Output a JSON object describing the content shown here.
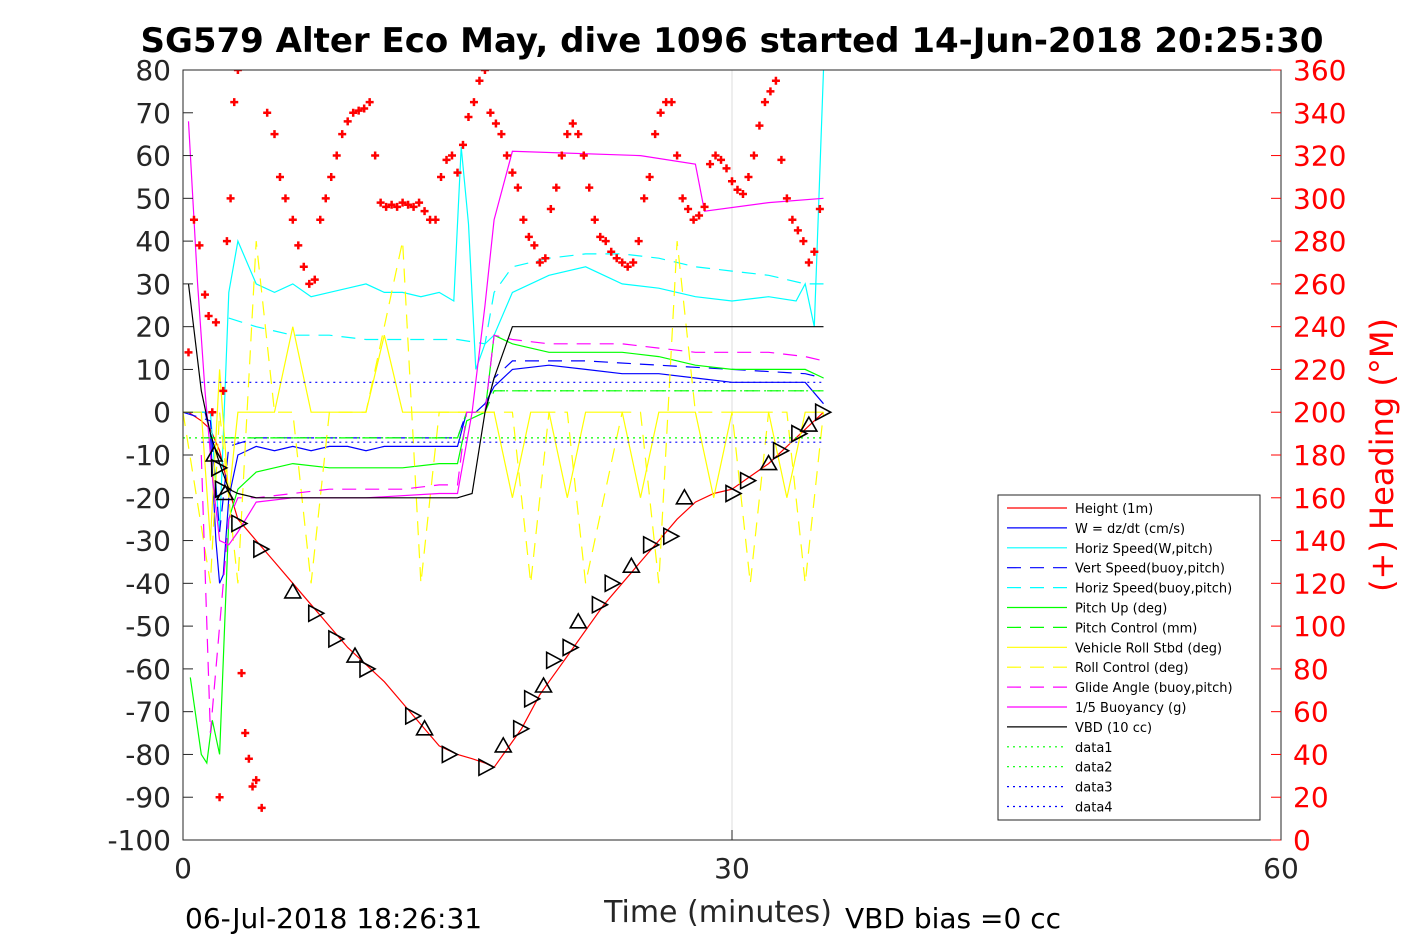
{
  "title": "SG579 Alter Eco May, dive 1096 started 14-Jun-2018 20:25:30",
  "footer": {
    "date": "06-Jul-2018 18:26:31",
    "vbd_bias": "VBD bias =0 cc"
  },
  "chart_data": {
    "type": "line",
    "title": "SG579 Alter Eco May, dive 1096 started 14-Jun-2018 20:25:30",
    "xlabel": "Time (minutes)",
    "ylabel": "",
    "y2label": "(+) Heading (°M)",
    "xlim": [
      0,
      60
    ],
    "ylim": [
      -100,
      80
    ],
    "y2lim": [
      0,
      360
    ],
    "xticks": [
      0,
      30,
      60
    ],
    "yticks": [
      -100,
      -90,
      -80,
      -70,
      -60,
      -50,
      -40,
      -30,
      -20,
      -10,
      0,
      10,
      20,
      30,
      40,
      50,
      60,
      70,
      80
    ],
    "y2ticks": [
      0,
      20,
      40,
      60,
      80,
      100,
      120,
      140,
      160,
      180,
      200,
      220,
      240,
      260,
      280,
      300,
      320,
      340,
      360
    ],
    "grid": "x-only",
    "legend_position": "lower-right",
    "legend": [
      {
        "label": "Height (1m)",
        "color": "#ff0000",
        "style": "solid"
      },
      {
        "label": "W = dz/dt (cm/s)",
        "color": "#0000ff",
        "style": "solid"
      },
      {
        "label": "Horiz Speed(W,pitch)",
        "color": "#00ffff",
        "style": "solid"
      },
      {
        "label": "Vert Speed(buoy,pitch)",
        "color": "#0000ff",
        "style": "dashed"
      },
      {
        "label": "Horiz Speed(buoy,pitch)",
        "color": "#00ffff",
        "style": "dashed"
      },
      {
        "label": "Pitch Up (deg)",
        "color": "#00ff00",
        "style": "solid"
      },
      {
        "label": "Pitch Control (mm)",
        "color": "#00ff00",
        "style": "dashed"
      },
      {
        "label": "Vehicle Roll Stbd (deg)",
        "color": "#ffff00",
        "style": "solid"
      },
      {
        "label": "Roll Control (deg)",
        "color": "#ffff00",
        "style": "dashed"
      },
      {
        "label": "Glide Angle (buoy,pitch)",
        "color": "#ff00ff",
        "style": "dashed"
      },
      {
        "label": "1/5 Buoyancy (g)",
        "color": "#ff00ff",
        "style": "solid"
      },
      {
        "label": "VBD (10 cc)",
        "color": "#000000",
        "style": "solid"
      },
      {
        "label": "data1",
        "color": "#00ff00",
        "style": "dotted"
      },
      {
        "label": "data2",
        "color": "#00ff00",
        "style": "dotted"
      },
      {
        "label": "data3",
        "color": "#0000ff",
        "style": "dotted"
      },
      {
        "label": "data4",
        "color": "#0000ff",
        "style": "dotted"
      }
    ],
    "series": [
      {
        "name": "Height (1m)",
        "color": "#ff0000",
        "style": "solid",
        "x": [
          0.3,
          1.0,
          1.5,
          2.0,
          2.5,
          3.0,
          4.0,
          5.0,
          6.0,
          7.0,
          8.0,
          9.0,
          10.0,
          11.0,
          12.0,
          13.0,
          14.0,
          15.0,
          15.8,
          16.5,
          17.0,
          17.5,
          18.0,
          18.5,
          19.0,
          19.5,
          20.0,
          21.0,
          22.0,
          23.0,
          24.0,
          25.0,
          26.0,
          27.0,
          28.0,
          29.0,
          30.0,
          31.0,
          32.0,
          33.0,
          34.0,
          35.0
        ],
        "y": [
          0,
          -2,
          -4,
          -9,
          -18,
          -25,
          -30,
          -35,
          -40,
          -45,
          -50,
          -55,
          -59,
          -63,
          -68,
          -73,
          -78,
          -80,
          -81,
          -82,
          -83,
          -80,
          -77,
          -74,
          -70,
          -66,
          -63,
          -57,
          -51,
          -45,
          -40,
          -35,
          -30,
          -25,
          -21,
          -19,
          -18,
          -15,
          -12,
          -8,
          -4,
          0
        ]
      },
      {
        "name": "W = dz/dt (cm/s)",
        "color": "#0000ff",
        "style": "solid",
        "x": [
          0,
          1.2,
          1.5,
          1.8,
          2.0,
          2.2,
          2.5,
          3.0,
          4.0,
          5.0,
          6.0,
          7.0,
          8.0,
          9.0,
          10.0,
          11.0,
          12.0,
          13.0,
          14.0,
          15.0,
          15.5,
          16.0,
          16.5,
          17.0,
          18.0,
          20.0,
          22.0,
          24.0,
          26.0,
          28.0,
          30.0,
          32.0,
          34.0,
          35.0
        ],
        "y": [
          0,
          0,
          -5,
          -30,
          -40,
          -38,
          -20,
          -10,
          -8,
          -9,
          -8,
          -9,
          -8,
          -8,
          -9,
          -8,
          -8,
          -8,
          -8,
          -8,
          0,
          0,
          2,
          6,
          10,
          11,
          10,
          9,
          9,
          8,
          7,
          7,
          7,
          2
        ]
      },
      {
        "name": "Horiz Speed(W,pitch)",
        "color": "#00ffff",
        "style": "solid",
        "x": [
          0,
          1.5,
          2.0,
          2.5,
          3.0,
          4.0,
          5.0,
          6.0,
          7.0,
          8.0,
          9.0,
          10.0,
          11.0,
          12.0,
          13.0,
          14.0,
          14.8,
          15.2,
          15.6,
          16.0,
          16.5,
          17.0,
          18.0,
          20.0,
          22.0,
          24.0,
          26.0,
          28.0,
          30.0,
          32.0,
          33.5,
          34.0,
          34.5,
          35.0
        ],
        "y": [
          0,
          0,
          -28,
          28,
          40,
          30,
          28,
          30,
          27,
          28,
          29,
          30,
          28,
          28,
          27,
          28,
          26,
          62,
          44,
          10,
          16,
          18,
          28,
          32,
          34,
          30,
          29,
          27,
          26,
          27,
          26,
          30,
          20,
          80
        ]
      },
      {
        "name": "Vert Speed(buoy,pitch)",
        "color": "#0000ff",
        "style": "dashed",
        "x": [
          0,
          1.5,
          2.0,
          2.5,
          4.0,
          8.0,
          12.0,
          15.0,
          15.5,
          16.5,
          17.0,
          18.0,
          22.0,
          26.0,
          30.0,
          34.0,
          35.0
        ],
        "y": [
          0,
          -2,
          -28,
          -8,
          -6,
          -6,
          -6,
          -6,
          0,
          0,
          8,
          12,
          12,
          11,
          10,
          9,
          8
        ]
      },
      {
        "name": "Horiz Speed(buoy,pitch)",
        "color": "#00ffff",
        "style": "dashed",
        "x": [
          2.5,
          4.0,
          6.0,
          8.0,
          10.0,
          12.0,
          14.0,
          15.0,
          16.5,
          17.0,
          18.0,
          20.0,
          22.0,
          24.0,
          26.0,
          28.0,
          30.0,
          32.0,
          34.0,
          35.0
        ],
        "y": [
          22,
          20,
          18,
          18,
          17,
          17,
          17,
          17,
          16,
          28,
          34,
          36,
          37,
          37,
          36,
          34,
          33,
          32,
          30,
          30
        ]
      },
      {
        "name": "Pitch Up (deg)",
        "color": "#00ff00",
        "style": "solid",
        "x": [
          0.4,
          1.0,
          1.3,
          1.6,
          2.0,
          2.5,
          3.0,
          4.0,
          6.0,
          8.0,
          10.0,
          12.0,
          14.0,
          15.0,
          15.5,
          16.5,
          17.0,
          18.0,
          20.0,
          22.0,
          24.0,
          26.0,
          28.0,
          30.0,
          32.0,
          34.0,
          35.0
        ],
        "y": [
          -62,
          -80,
          -82,
          -72,
          -80,
          -25,
          -18,
          -14,
          -12,
          -13,
          -13,
          -13,
          -12,
          -12,
          -2,
          0,
          18,
          16,
          14,
          14,
          14,
          13,
          11,
          10,
          10,
          10,
          8
        ]
      },
      {
        "name": "Pitch Control (mm)",
        "color": "#00ff00",
        "style": "dashed",
        "x": [
          1.0,
          2.0,
          2.5,
          15.0,
          15.5,
          16.5,
          17.0,
          35.0
        ],
        "y": [
          -6,
          -6,
          -6,
          -6,
          0,
          0,
          5,
          5
        ]
      },
      {
        "name": "Vehicle Roll Stbd (deg)",
        "color": "#ffff00",
        "style": "solid",
        "x": [
          0,
          1.0,
          1.5,
          2.0,
          2.5,
          3.0,
          4.0,
          5.0,
          6.0,
          7.0,
          8.0,
          9.0,
          10.0,
          11.0,
          12.0,
          13.0,
          14.0,
          15.0,
          16.0,
          17.0,
          18.0,
          19.0,
          20.0,
          21.0,
          22.0,
          23.0,
          24.0,
          25.0,
          26.0,
          27.0,
          28.0,
          29.0,
          30.0,
          31.0,
          32.0,
          33.0,
          34.0,
          35.0
        ],
        "y": [
          0,
          0,
          -30,
          10,
          -20,
          0,
          0,
          0,
          20,
          0,
          0,
          0,
          0,
          18,
          0,
          0,
          0,
          0,
          0,
          0,
          -20,
          0,
          0,
          -20,
          0,
          0,
          0,
          -20,
          0,
          0,
          0,
          -20,
          0,
          0,
          0,
          -20,
          0,
          0
        ]
      },
      {
        "name": "Roll Control (deg)",
        "color": "#ffff00",
        "style": "dashed",
        "x": [
          0,
          1.5,
          2.0,
          3.0,
          4.0,
          5.0,
          6.0,
          7.0,
          8.0,
          9.0,
          10.0,
          12.0,
          13.0,
          14.0,
          15.0,
          18.0,
          19.0,
          20.0,
          21.0,
          22.0,
          24.0,
          25.0,
          26.0,
          27.0,
          28.0,
          30.0,
          31.0,
          32.0,
          33.0,
          34.0,
          35.0
        ],
        "y": [
          0,
          -40,
          0,
          -40,
          40,
          0,
          0,
          -40,
          0,
          0,
          0,
          40,
          -40,
          0,
          0,
          0,
          -40,
          0,
          0,
          -40,
          0,
          0,
          -40,
          40,
          0,
          0,
          -40,
          0,
          0,
          -40,
          0
        ]
      },
      {
        "name": "Glide Angle (buoy,pitch)",
        "color": "#ff00ff",
        "style": "dashed",
        "x": [
          1.0,
          1.5,
          2.0,
          2.5,
          3.0,
          4.0,
          6.0,
          8.0,
          10.0,
          12.0,
          14.0,
          15.0,
          15.5,
          16.5,
          17.0,
          18.0,
          20.0,
          22.0,
          24.0,
          26.0,
          28.0,
          30.0,
          32.0,
          34.0,
          35.0
        ],
        "y": [
          -10,
          -75,
          -50,
          -25,
          -20,
          -20,
          -19,
          -18,
          -18,
          -18,
          -17,
          -17,
          0,
          0,
          18,
          17,
          16,
          16,
          16,
          15,
          14,
          14,
          14,
          13,
          12
        ]
      },
      {
        "name": "1/5 Buoyancy (g)",
        "color": "#ff00ff",
        "style": "solid",
        "x": [
          0.3,
          0.8,
          1.2,
          1.6,
          2.0,
          2.5,
          3.0,
          4.0,
          6.0,
          10.0,
          14.0,
          15.0,
          15.8,
          16.5,
          17.0,
          18.0,
          25.0,
          28.0,
          28.5,
          32.0,
          35.0
        ],
        "y": [
          68,
          30,
          5,
          -15,
          -30,
          -31,
          -28,
          -21,
          -20,
          -20,
          -19,
          -19,
          0,
          25,
          45,
          61,
          60,
          58,
          47,
          49,
          50
        ]
      },
      {
        "name": "VBD (10 cc)",
        "color": "#000000",
        "style": "solid",
        "x": [
          0.3,
          1.0,
          1.5,
          2.0,
          2.5,
          3.0,
          4.0,
          14.0,
          15.0,
          15.8,
          16.5,
          17.0,
          18.0,
          35.0
        ],
        "y": [
          30,
          5,
          -5,
          -12,
          -18,
          -19,
          -20,
          -20,
          -20,
          -19,
          0,
          8,
          20,
          20
        ]
      },
      {
        "name": "Heading (°M)",
        "color": "#ff0000",
        "style": "markers",
        "axis": "right",
        "x": [
          0.3,
          0.6,
          0.9,
          1.2,
          1.4,
          1.6,
          1.8,
          2.0,
          2.2,
          2.4,
          2.6,
          2.8,
          3.0,
          3.2,
          3.4,
          3.6,
          3.8,
          4.0,
          4.3,
          4.6,
          5.0,
          5.3,
          5.6,
          6.0,
          6.3,
          6.6,
          6.9,
          7.2,
          7.5,
          7.8,
          8.1,
          8.4,
          8.7,
          9.0,
          9.3,
          9.6,
          9.9,
          10.2,
          10.5,
          10.8,
          11.1,
          11.4,
          11.7,
          12.0,
          12.3,
          12.6,
          12.9,
          13.2,
          13.5,
          13.8,
          14.1,
          14.4,
          14.7,
          15.0,
          15.3,
          15.6,
          15.9,
          16.2,
          16.5,
          16.8,
          17.1,
          17.4,
          17.7,
          18.0,
          18.3,
          18.6,
          18.9,
          19.2,
          19.5,
          19.8,
          20.1,
          20.4,
          20.7,
          21.0,
          21.3,
          21.6,
          21.9,
          22.2,
          22.5,
          22.8,
          23.1,
          23.4,
          23.7,
          24.0,
          24.3,
          24.6,
          24.9,
          25.2,
          25.5,
          25.8,
          26.1,
          26.4,
          26.7,
          27.0,
          27.3,
          27.6,
          27.9,
          28.2,
          28.5,
          28.8,
          29.1,
          29.4,
          29.7,
          30.0,
          30.3,
          30.6,
          30.9,
          31.2,
          31.5,
          31.8,
          32.1,
          32.4,
          32.7,
          33.0,
          33.3,
          33.6,
          33.9,
          34.2,
          34.5,
          34.8
        ],
        "y": [
          228,
          290,
          278,
          255,
          245,
          200,
          242,
          20,
          210,
          280,
          300,
          345,
          360,
          78,
          50,
          38,
          25,
          28,
          15,
          340,
          330,
          310,
          300,
          290,
          278,
          268,
          260,
          262,
          290,
          300,
          310,
          320,
          330,
          336,
          340,
          341,
          342,
          345,
          320,
          298,
          296,
          297,
          296,
          298,
          297,
          296,
          298,
          294,
          290,
          290,
          310,
          318,
          320,
          312,
          325,
          338,
          345,
          355,
          360,
          340,
          335,
          330,
          320,
          312,
          305,
          290,
          282,
          278,
          270,
          272,
          295,
          305,
          320,
          330,
          335,
          330,
          320,
          305,
          290,
          282,
          280,
          275,
          272,
          270,
          268,
          270,
          280,
          300,
          310,
          330,
          340,
          345,
          345,
          320,
          300,
          295,
          290,
          292,
          296,
          316,
          320,
          318,
          314,
          308,
          304,
          302,
          310,
          320,
          334,
          345,
          350,
          355,
          318,
          300,
          290,
          285,
          280,
          270,
          275,
          295
        ]
      },
      {
        "name": "data1",
        "color": "#00ff00",
        "style": "dotted",
        "x": [
          0,
          35
        ],
        "y": [
          -6,
          -6
        ]
      },
      {
        "name": "data2",
        "color": "#00ff00",
        "style": "dotted",
        "x": [
          17,
          35
        ],
        "y": [
          5,
          5
        ]
      },
      {
        "name": "data3",
        "color": "#0000ff",
        "style": "dotted",
        "x": [
          1,
          35
        ],
        "y": [
          7,
          7
        ]
      },
      {
        "name": "data4",
        "color": "#0000ff",
        "style": "dotted",
        "x": [
          1,
          35
        ],
        "y": [
          -7,
          -7
        ]
      }
    ],
    "triangle_markers": {
      "color": "#000000",
      "x": [
        1.7,
        1.9,
        2.1,
        2.3,
        3.0,
        4.2,
        6.0,
        7.2,
        8.3,
        9.4,
        10.0,
        12.5,
        13.2,
        14.5,
        16.5,
        17.5,
        18.4,
        19.0,
        19.7,
        20.2,
        21.1,
        21.6,
        22.7,
        23.4,
        24.5,
        25.5,
        26.6,
        27.4,
        30.0,
        30.8,
        32.0,
        32.6,
        33.6,
        34.2,
        34.9
      ],
      "y": [
        -10,
        -13,
        -18,
        -19,
        -26,
        -32,
        -42,
        -47,
        -53,
        -57,
        -60,
        -71,
        -74,
        -80,
        -83,
        -78,
        -74,
        -67,
        -64,
        -58,
        -55,
        -49,
        -45,
        -40,
        -36,
        -31,
        -29,
        -20,
        -19,
        -16,
        -12,
        -9,
        -5,
        -3,
        0
      ]
    }
  }
}
